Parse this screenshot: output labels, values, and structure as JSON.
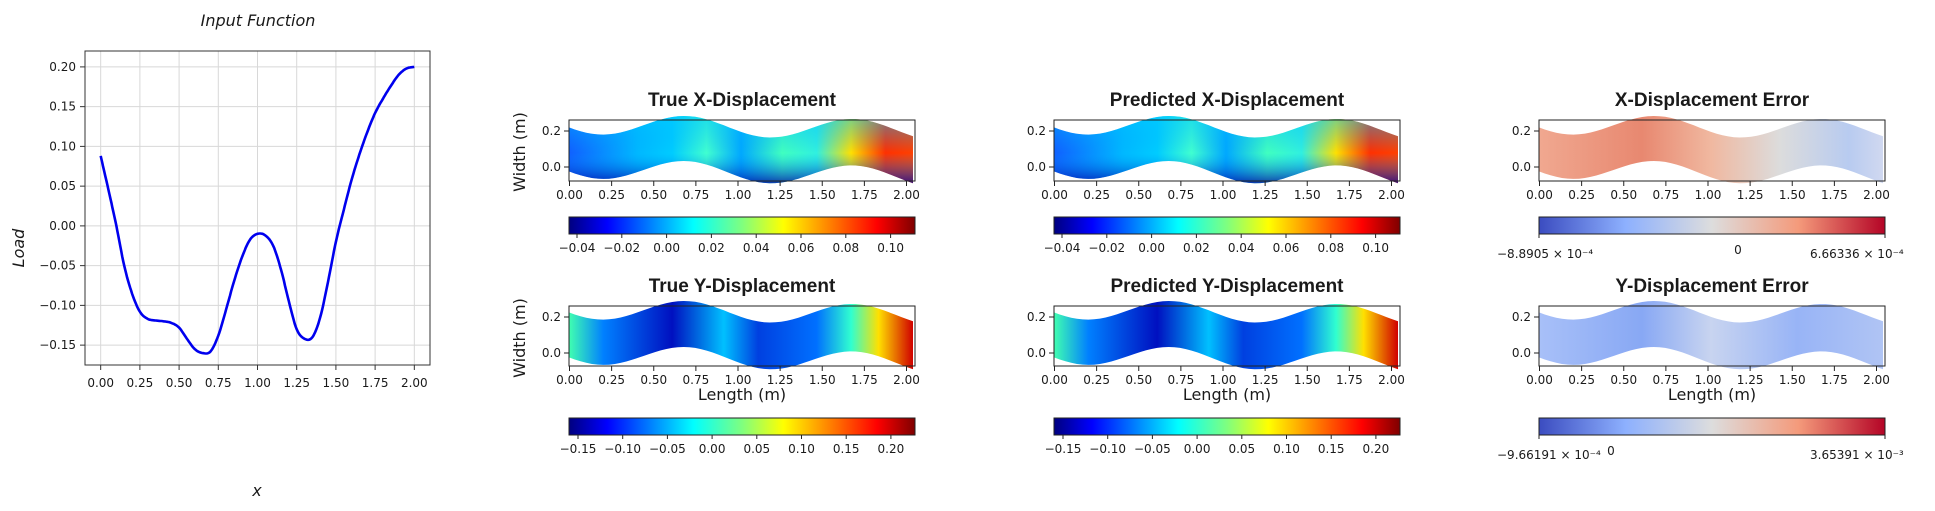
{
  "input_plot": {
    "title": "Input Function",
    "xlabel": "x",
    "ylabel": "Load",
    "xticks": [
      "0.00",
      "0.25",
      "0.50",
      "0.75",
      "1.00",
      "1.25",
      "1.50",
      "1.75",
      "2.00"
    ],
    "yticks": [
      "0.20",
      "0.15",
      "0.10",
      "0.05",
      "0.00",
      "−0.05",
      "−0.10",
      "−0.15"
    ],
    "line_color": "#0000ee"
  },
  "chart_data": [
    {
      "type": "line",
      "title": "Input Function",
      "xlabel": "x",
      "ylabel": "Load",
      "xlim": [
        -0.1,
        2.1
      ],
      "ylim": [
        -0.175,
        0.22
      ],
      "grid": true,
      "series": [
        {
          "x": [
            0.0,
            0.05,
            0.1,
            0.15,
            0.2,
            0.25,
            0.3,
            0.35,
            0.4,
            0.45,
            0.5,
            0.55,
            0.6,
            0.65,
            0.7,
            0.75,
            0.8,
            0.85,
            0.9,
            0.95,
            1.0,
            1.05,
            1.1,
            1.15,
            1.2,
            1.25,
            1.3,
            1.35,
            1.4,
            1.45,
            1.5,
            1.55,
            1.6,
            1.65,
            1.7,
            1.75,
            1.8,
            1.85,
            1.9,
            1.95,
            2.0
          ],
          "y": [
            0.088,
            0.045,
            0.0,
            -0.05,
            -0.085,
            -0.108,
            -0.117,
            -0.119,
            -0.12,
            -0.122,
            -0.128,
            -0.142,
            -0.155,
            -0.16,
            -0.158,
            -0.138,
            -0.105,
            -0.07,
            -0.04,
            -0.018,
            -0.01,
            -0.012,
            -0.025,
            -0.055,
            -0.095,
            -0.13,
            -0.142,
            -0.14,
            -0.115,
            -0.07,
            -0.02,
            0.02,
            0.058,
            0.09,
            0.118,
            0.142,
            0.16,
            0.176,
            0.19,
            0.198,
            0.2
          ]
        }
      ]
    }
  ],
  "fields": {
    "shared": {
      "length_label": "Length (m)",
      "width_label": "Width (m)",
      "xticks": [
        "0.00",
        "0.25",
        "0.50",
        "0.75",
        "1.00",
        "1.25",
        "1.50",
        "1.75",
        "2.00"
      ],
      "yticks": [
        "0.2",
        "0.0"
      ]
    },
    "panels": [
      {
        "title": "True X-Displacement"
      },
      {
        "title": "Predicted X-Displacement"
      },
      {
        "title": "X-Displacement Error"
      },
      {
        "title": "True Y-Displacement"
      },
      {
        "title": "Predicted Y-Displacement"
      },
      {
        "title": "Y-Displacement Error"
      }
    ],
    "colorbars": {
      "xdisp": {
        "ticks": [
          "−0.04",
          "−0.02",
          "0.00",
          "0.02",
          "0.04",
          "0.06",
          "0.08",
          "0.10"
        ]
      },
      "ydisp": {
        "ticks": [
          "−0.15",
          "−0.10",
          "−0.05",
          "0.00",
          "0.05",
          "0.10",
          "0.15",
          "0.20"
        ]
      },
      "xerr": {
        "min_label": "−8.8905 × 10⁻⁴",
        "zero_label": "0",
        "max_label": "6.66336 × 10⁻⁴"
      },
      "yerr": {
        "min_label": "−9.66191 × 10⁻⁴",
        "zero_label": "0",
        "max_label": "3.65391 × 10⁻³"
      }
    }
  }
}
